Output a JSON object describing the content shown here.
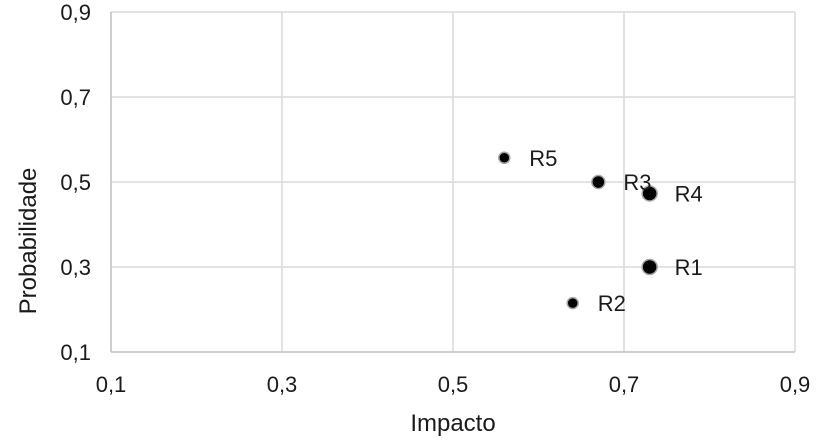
{
  "chart_data": {
    "type": "scatter",
    "title": "",
    "xlabel": "Impacto",
    "ylabel": "Probabilidade",
    "xlim": [
      0.1,
      0.9
    ],
    "ylim": [
      0.1,
      0.9
    ],
    "xticks": [
      0.1,
      0.3,
      0.5,
      0.7,
      0.9
    ],
    "yticks": [
      0.1,
      0.3,
      0.5,
      0.7,
      0.9
    ],
    "xtick_labels": [
      "0,1",
      "0,3",
      "0,5",
      "0,7",
      "0,9"
    ],
    "ytick_labels": [
      "0,1",
      "0,3",
      "0,5",
      "0,7",
      "0,9"
    ],
    "grid": true,
    "marker_color": "#000000",
    "marker_edge_color": "#a6a6a6",
    "points": [
      {
        "label": "R1",
        "x": 0.73,
        "y": 0.3,
        "size": "large"
      },
      {
        "label": "R2",
        "x": 0.64,
        "y": 0.215,
        "size": "small"
      },
      {
        "label": "R3",
        "x": 0.67,
        "y": 0.5,
        "size": "medium"
      },
      {
        "label": "R4",
        "x": 0.73,
        "y": 0.473,
        "size": "large"
      },
      {
        "label": "R5",
        "x": 0.56,
        "y": 0.557,
        "size": "small"
      }
    ]
  }
}
